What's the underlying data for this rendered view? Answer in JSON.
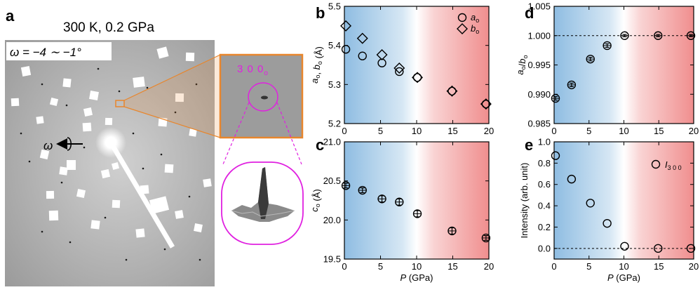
{
  "panel_labels": {
    "a": "a",
    "b": "b",
    "c": "c",
    "d": "d",
    "e": "e"
  },
  "panel_a": {
    "condition": "300 K, 0.2 GPa",
    "omega_range": "ω = −4 ∼ −1°",
    "omega_label": "ω",
    "inset_label_main": "3 0 0",
    "inset_label_sub": "o"
  },
  "colors": {
    "gradient_left": "#8fbde2",
    "gradient_right": "#f08e8e",
    "inset_border": "#e8862c",
    "magenta": "#e020e0"
  },
  "chart_data": [
    {
      "id": "b",
      "type": "scatter",
      "xlabel": "",
      "ylabel": "a_o, b_o (Å)",
      "xlim": [
        0,
        20
      ],
      "ylim": [
        5.2,
        5.5
      ],
      "xticks": [
        0,
        5,
        10,
        15,
        20
      ],
      "yticks": [
        5.2,
        5.3,
        5.4,
        5.5
      ],
      "ytick_labels": [
        "5.2",
        "5.3",
        "5.4",
        "5.5"
      ],
      "legend_position": "top-right",
      "series": [
        {
          "name": "a_o",
          "marker": "circle",
          "x": [
            0.2,
            2.5,
            5.2,
            7.6,
            10.1,
            14.9,
            19.6
          ],
          "y": [
            5.39,
            5.373,
            5.355,
            5.333,
            5.318,
            5.283,
            5.25
          ]
        },
        {
          "name": "b_o",
          "marker": "diamond",
          "x": [
            0.2,
            2.5,
            5.2,
            7.6,
            10.1,
            14.9,
            19.6
          ],
          "y": [
            5.45,
            5.418,
            5.376,
            5.342,
            5.318,
            5.283,
            5.25
          ]
        }
      ]
    },
    {
      "id": "c",
      "type": "scatter",
      "xlabel": "P (GPa)",
      "ylabel": "c_o (Å)",
      "xlim": [
        0,
        20
      ],
      "ylim": [
        19.5,
        21.0
      ],
      "xticks": [
        0,
        5,
        10,
        15,
        20
      ],
      "yticks": [
        19.5,
        20.0,
        20.5,
        21.0
      ],
      "ytick_labels": [
        "19.5",
        "20.0",
        "20.5",
        "21.0"
      ],
      "series": [
        {
          "name": "c_o",
          "marker": "circle",
          "x": [
            0.2,
            2.5,
            5.2,
            7.6,
            10.1,
            14.9,
            19.6
          ],
          "y": [
            20.44,
            20.38,
            20.27,
            20.23,
            20.08,
            19.86,
            19.77
          ],
          "yerr": [
            0.03,
            0.03,
            0.04,
            0.04,
            0.04,
            0.04,
            0.03
          ]
        }
      ]
    },
    {
      "id": "d",
      "type": "scatter",
      "xlabel": "",
      "ylabel": "a_o/b_o",
      "xlim": [
        0,
        20
      ],
      "ylim": [
        0.985,
        1.005
      ],
      "xticks": [
        0,
        5,
        10,
        15,
        20
      ],
      "yticks": [
        0.985,
        0.99,
        0.995,
        1.0,
        1.005
      ],
      "ytick_labels": [
        "0.985",
        "0.990",
        "0.995",
        "1.000",
        "1.005"
      ],
      "reference_line": 1.0,
      "series": [
        {
          "name": "a_o/b_o",
          "marker": "circle",
          "x": [
            0.2,
            2.5,
            5.2,
            7.6,
            10.1,
            14.9,
            19.6
          ],
          "y": [
            0.9893,
            0.9916,
            0.996,
            0.9983,
            1.0,
            1.0,
            1.0
          ],
          "yerr": [
            0.0003,
            0.0003,
            0.0003,
            0.0003,
            0.0002,
            0.0002,
            0.0002
          ]
        }
      ]
    },
    {
      "id": "e",
      "type": "scatter",
      "xlabel": "P (GPa)",
      "ylabel": "Intensity (arb. unit)",
      "xlim": [
        0,
        20
      ],
      "ylim": [
        -0.1,
        1.0
      ],
      "xticks": [
        0,
        5,
        10,
        15,
        20
      ],
      "yticks": [
        0.0,
        0.2,
        0.4,
        0.6,
        0.8,
        1.0
      ],
      "ytick_labels": [
        "0.0",
        "0.2",
        "0.4",
        "0.6",
        "0.8",
        "1.0"
      ],
      "reference_line": 0.0,
      "legend_position": "top-right",
      "series": [
        {
          "name": "I_300",
          "marker": "circle",
          "x": [
            0.2,
            2.5,
            5.2,
            7.6,
            10.1,
            14.9,
            19.6
          ],
          "y": [
            0.87,
            0.65,
            0.425,
            0.235,
            0.02,
            0.0,
            0.0
          ]
        }
      ]
    }
  ]
}
